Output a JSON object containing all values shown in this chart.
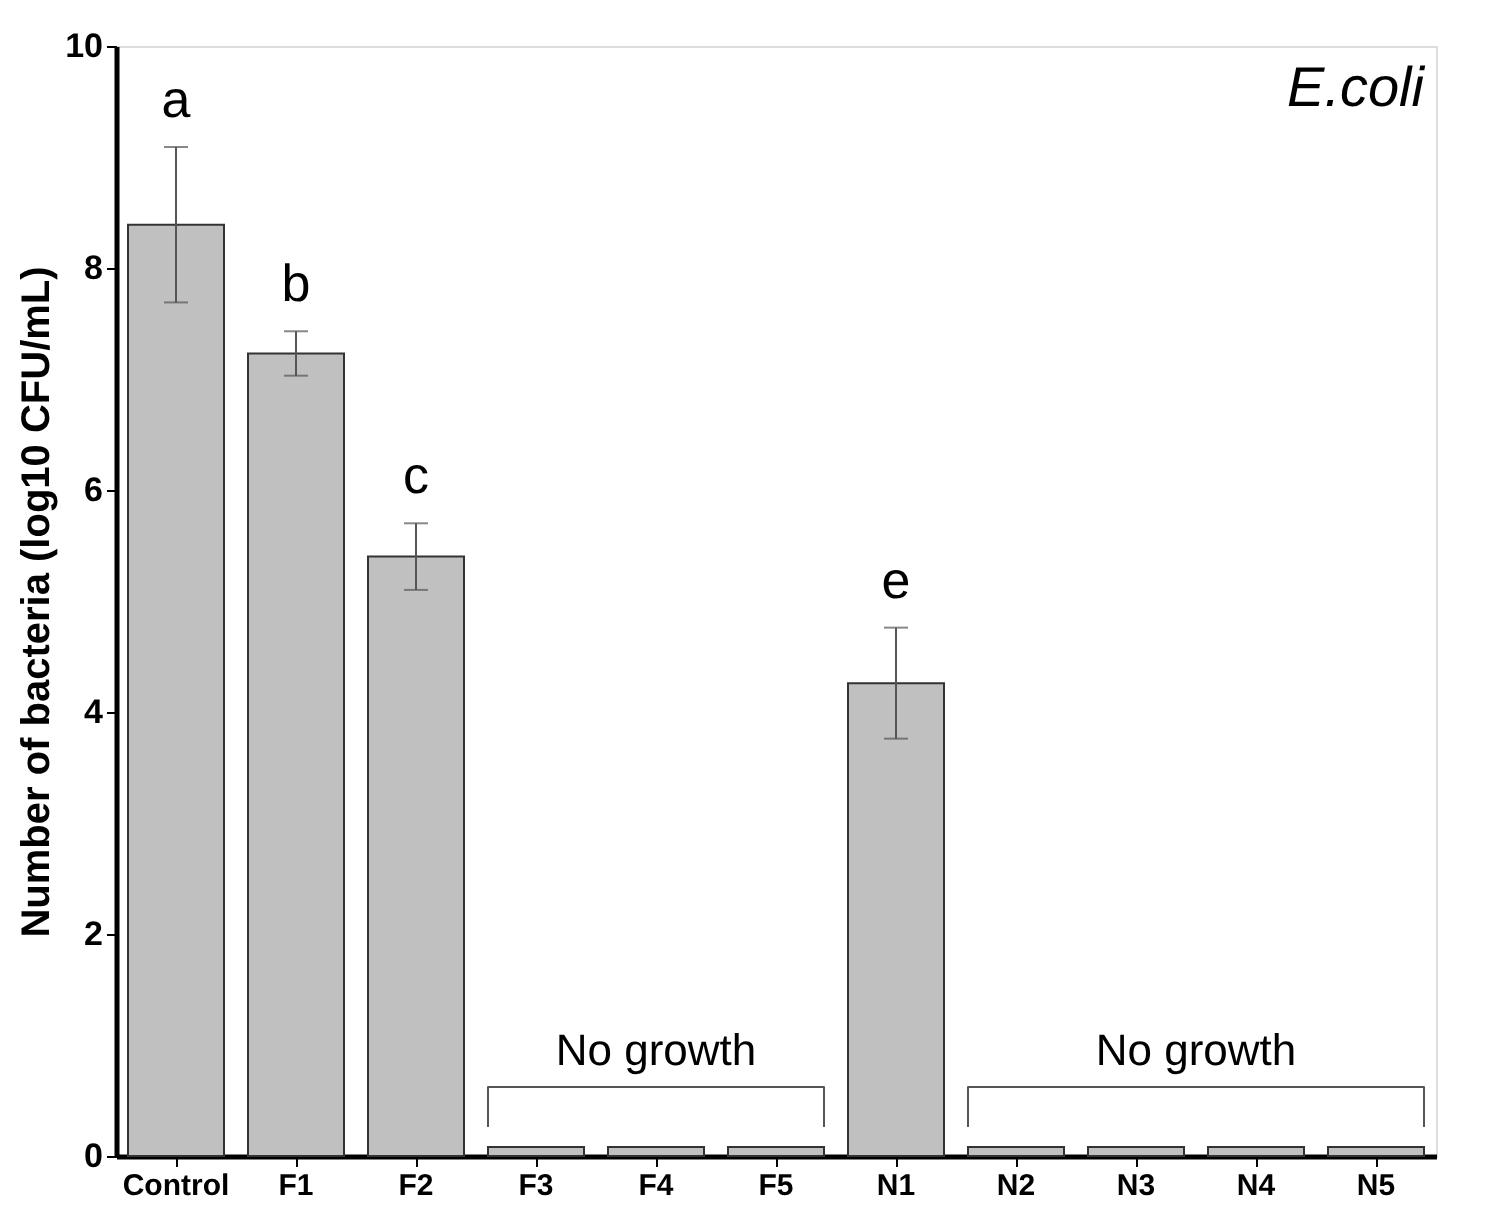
{
  "chart_data": {
    "type": "bar",
    "ylabel": "Number of bacteria (log10 CFU/mL)",
    "categories": [
      "Control",
      "F1",
      "F2",
      "F3",
      "F4",
      "F5",
      "N1",
      "N2",
      "N3",
      "N4",
      "N5"
    ],
    "values": [
      8.39,
      7.23,
      5.4,
      0.08,
      0.08,
      0.08,
      4.26,
      0.08,
      0.08,
      0.08,
      0.08
    ],
    "errors": [
      0.7,
      0.2,
      0.3,
      null,
      null,
      null,
      0.5,
      null,
      null,
      null,
      null
    ],
    "color": "#c0c0c0",
    "ylim": [
      0,
      10
    ],
    "yticks": [
      0,
      2,
      4,
      6,
      8,
      10
    ],
    "grid": false,
    "annotations": [
      "a",
      "b",
      "c",
      "No growth",
      "e",
      "No growth",
      "E.coli"
    ]
  }
}
